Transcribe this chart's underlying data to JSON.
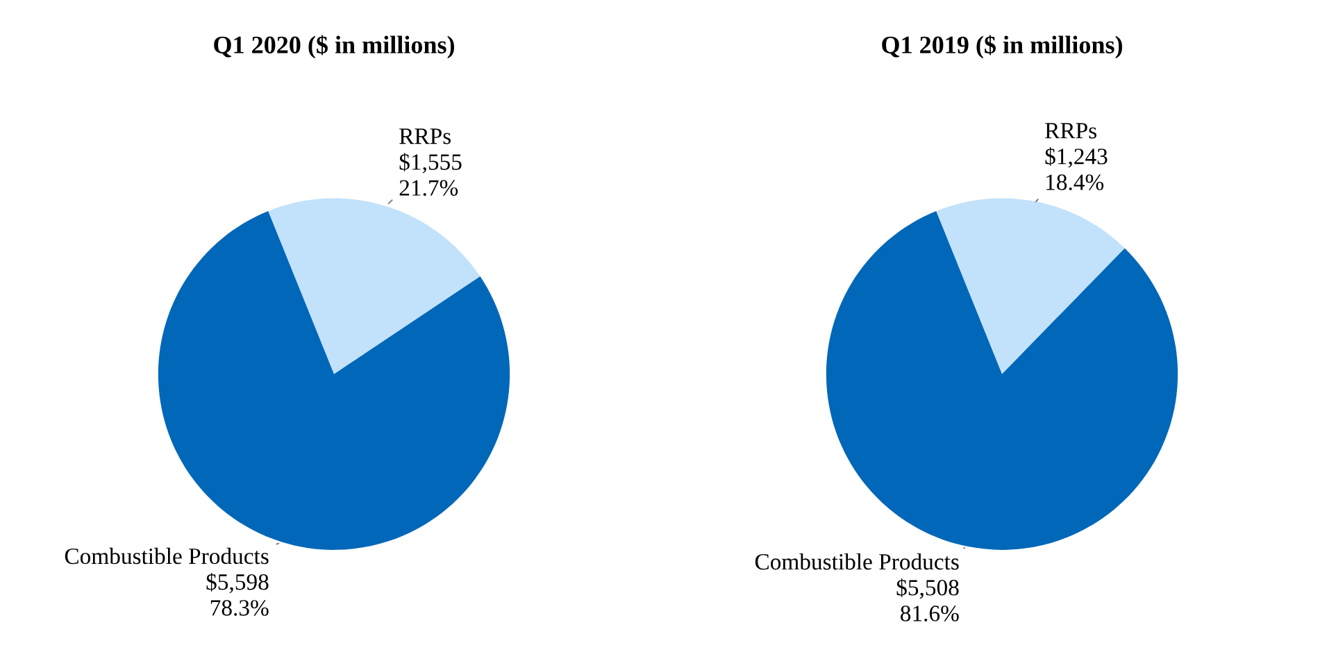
{
  "chart_data": [
    {
      "type": "pie",
      "title": "Q1 2020 ($ in millions)",
      "categories": [
        "RRPs",
        "Combustible Products"
      ],
      "values": [
        1555,
        5598
      ],
      "colors": [
        "#c2e2fb",
        "#0067b9"
      ],
      "value_labels": [
        "$1,555\n21.7%",
        "$5,598\n78.3%"
      ]
    },
    {
      "type": "pie",
      "title": "Q1 2019 ($ in millions)",
      "categories": [
        "RRPs",
        "Combustible Products"
      ],
      "values": [
        1243,
        5508
      ],
      "colors": [
        "#c2e2fb",
        "#0067b9"
      ],
      "value_labels": [
        "$1,243\n18.4%",
        "$5,508\n81.6%"
      ]
    }
  ]
}
